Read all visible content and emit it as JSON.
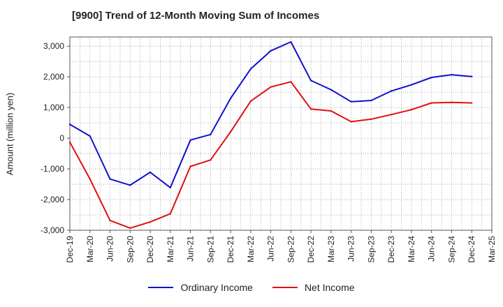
{
  "chart_data": {
    "type": "line",
    "title": "[9900]  Trend of 12-Month Moving Sum of Incomes",
    "xlabel": "",
    "ylabel": "Amount (million yen)",
    "categories": [
      "Dec-19",
      "Mar-20",
      "Jun-20",
      "Sep-20",
      "Dec-20",
      "Mar-21",
      "Jun-21",
      "Sep-21",
      "Dec-21",
      "Mar-22",
      "Jun-22",
      "Sep-22",
      "Dec-22",
      "Mar-23",
      "Jun-23",
      "Sep-23",
      "Dec-23",
      "Mar-24",
      "Jun-24",
      "Sep-24",
      "Dec-24",
      "Mar-25"
    ],
    "ylim": [
      -3000,
      3300
    ],
    "yticks": [
      3000,
      2000,
      1000,
      0,
      -1000,
      -2000,
      -3000
    ],
    "ytick_labels": [
      "3,000",
      "2,000",
      "1,000",
      "0",
      "-1,000",
      "-2,000",
      "-3,000"
    ],
    "grid": true,
    "legend_position": "bottom-center",
    "series": [
      {
        "name": "Ordinary Income",
        "color": "#1111cc",
        "values": [
          450,
          70,
          -1330,
          -1530,
          -1110,
          -1610,
          -60,
          120,
          1300,
          2260,
          2850,
          3140,
          1880,
          1580,
          1190,
          1230,
          1540,
          1740,
          1980,
          2070,
          2010,
          null
        ]
      },
      {
        "name": "Net Income",
        "color": "#dd1111",
        "values": [
          -130,
          -1330,
          -2680,
          -2930,
          -2730,
          -2460,
          -920,
          -710,
          210,
          1210,
          1670,
          1840,
          950,
          890,
          540,
          620,
          770,
          930,
          1150,
          1170,
          1150,
          null
        ]
      }
    ]
  }
}
